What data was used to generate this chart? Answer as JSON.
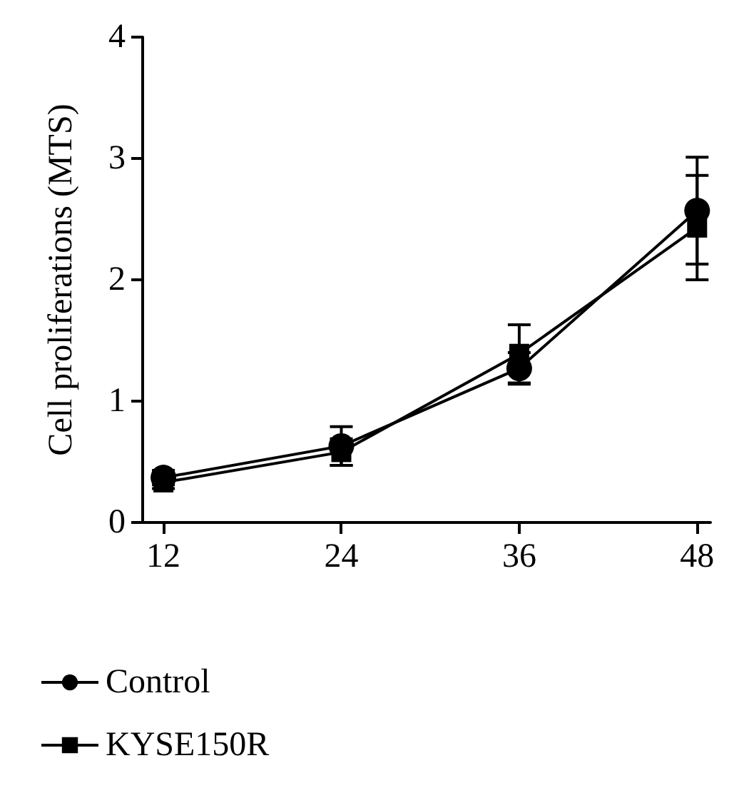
{
  "chart_data": {
    "type": "line",
    "ylabel": "Cell proliferations (MTS)",
    "x": [
      12,
      24,
      36,
      48
    ],
    "xlim": [
      10.6,
      48.9
    ],
    "xticks": [
      12,
      24,
      36,
      48
    ],
    "ylim": [
      0,
      4
    ],
    "yticks": [
      0,
      1,
      2,
      3,
      4
    ],
    "grid": false,
    "legend": "bottom left",
    "series": [
      {
        "name": "Control",
        "color": "#000000",
        "marker": "circle",
        "values": [
          0.37,
          0.63,
          1.27,
          2.57
        ],
        "errors": [
          0.06,
          0.16,
          0.13,
          0.44
        ]
      },
      {
        "name": "KYSE150R",
        "color": "#000000",
        "marker": "square",
        "values": [
          0.33,
          0.58,
          1.39,
          2.43
        ],
        "errors": [
          0.05,
          0.11,
          0.24,
          0.43
        ]
      }
    ]
  }
}
